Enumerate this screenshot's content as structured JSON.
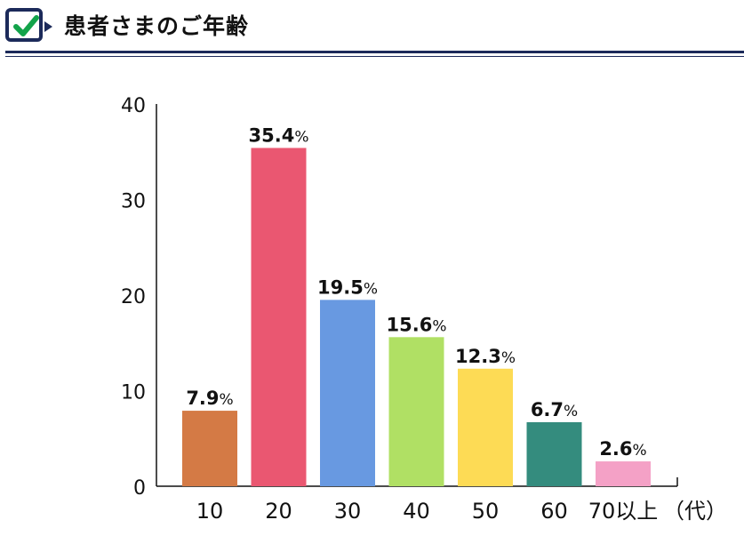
{
  "header": {
    "title": "患者さまのご年齢",
    "icon": "checkmark-icon"
  },
  "colors": {
    "header_navy": "#1c2a5a",
    "check_green": "#12a34a"
  },
  "chart_data": {
    "type": "bar",
    "categories": [
      "10",
      "20",
      "30",
      "40",
      "50",
      "60",
      "70以上"
    ],
    "values": [
      7.9,
      35.4,
      19.5,
      15.6,
      12.3,
      6.7,
      2.6
    ],
    "value_labels": [
      "7.9",
      "35.4",
      "19.5",
      "15.6",
      "12.3",
      "6.7",
      "2.6"
    ],
    "value_suffix": "%",
    "bar_colors": [
      "#d47a45",
      "#ea5771",
      "#6899e1",
      "#b0e064",
      "#fddb55",
      "#348c7e",
      "#f4a1c6"
    ],
    "x_unit": "（代）",
    "ylim": [
      0,
      40
    ],
    "yticks": [
      0,
      10,
      20,
      30,
      40
    ],
    "grid": false,
    "legend": "none"
  }
}
